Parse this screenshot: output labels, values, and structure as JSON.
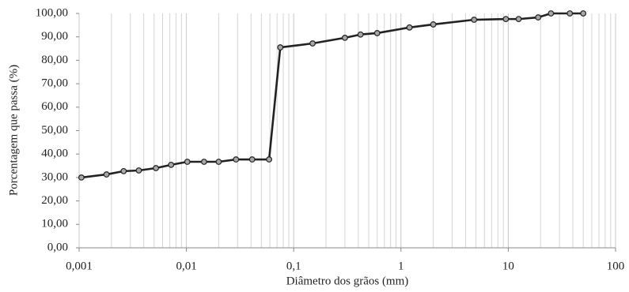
{
  "chart_data": {
    "type": "line",
    "x_label": "Diâmetro dos grãos (mm)",
    "y_label": "Porcentagem que passa (%)",
    "x_scale": "log",
    "minor_grid": true,
    "grid": true,
    "xlim": [
      0.001,
      100
    ],
    "ylim": [
      0,
      100
    ],
    "xticks": [
      {
        "value": 0.001,
        "label": "0,001"
      },
      {
        "value": 0.01,
        "label": "0,01"
      },
      {
        "value": 0.1,
        "label": "0,1"
      },
      1,
      10,
      100
    ],
    "yticks": [
      {
        "value": 0,
        "label": "0,00"
      },
      {
        "value": 10,
        "label": "10,00"
      },
      {
        "value": 20,
        "label": "20,00"
      },
      {
        "value": 30,
        "label": "30,00"
      },
      {
        "value": 40,
        "label": "40,00"
      },
      {
        "value": 50,
        "label": "50,00"
      },
      {
        "value": 60,
        "label": "60,00"
      },
      {
        "value": 70,
        "label": "70,00"
      },
      {
        "value": 80,
        "label": "80,00"
      },
      {
        "value": 90,
        "label": "90,00"
      },
      {
        "value": 100,
        "label": "100,00"
      }
    ],
    "x": [
      0.00105,
      0.0018,
      0.0026,
      0.0036,
      0.0052,
      0.0072,
      0.0102,
      0.0146,
      0.02,
      0.029,
      0.041,
      0.059,
      0.075,
      0.15,
      0.3,
      0.42,
      0.6,
      1.2,
      2,
      4.8,
      9.5,
      12.5,
      19,
      25,
      37.5,
      50
    ],
    "series": [
      {
        "color": "#222222",
        "marker_color": "#a8a8a8",
        "values": [
          30,
          31.3,
          32.7,
          33,
          34,
          35.4,
          36.7,
          36.7,
          36.7,
          37.7,
          37.7,
          37.7,
          85.5,
          87.2,
          89.6,
          91,
          91.6,
          94,
          95.3,
          97.3,
          97.6,
          97.6,
          98.3,
          100,
          100,
          100
        ]
      }
    ]
  }
}
